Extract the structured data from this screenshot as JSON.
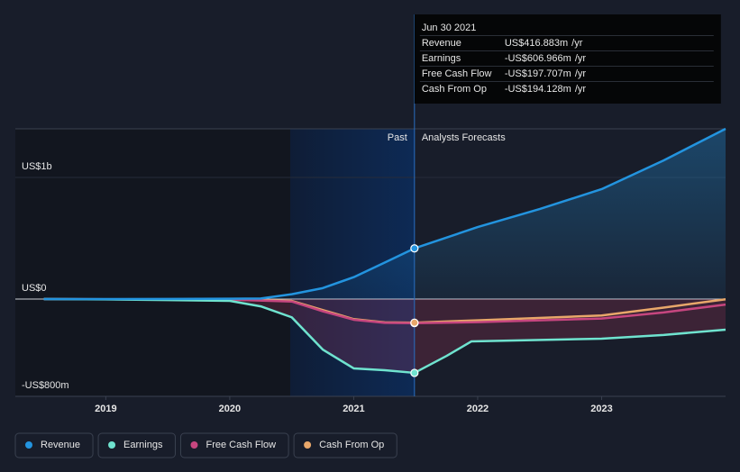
{
  "chart_data": {
    "type": "line",
    "xlim": [
      2018.27,
      2024.0
    ],
    "xticks": [
      2019,
      2020,
      2021,
      2022,
      2023
    ],
    "ylim": [
      -800,
      1400
    ],
    "yticks": [
      {
        "value": -800,
        "label": "-US$800m"
      },
      {
        "value": 0,
        "label": "US$0"
      },
      {
        "value": 1000,
        "label": "US$1b"
      }
    ],
    "grid": true,
    "annotations": {
      "past": "Past",
      "forecast": "Analysts Forecasts"
    },
    "series": [
      {
        "name": "Revenue",
        "color": "#2394df",
        "x": [
          2018.5,
          2019,
          2019.5,
          2020,
          2020.25,
          2020.5,
          2020.75,
          2021,
          2021.25,
          2021.49,
          2022,
          2022.5,
          2023,
          2023.5,
          2024
        ],
        "values": [
          0,
          0,
          1,
          3,
          5,
          40,
          90,
          180,
          300,
          416.883,
          592,
          740,
          904,
          1140,
          1400
        ]
      },
      {
        "name": "Earnings",
        "color": "#6fe3cf",
        "x": [
          2018.5,
          2019,
          2019.5,
          2020,
          2020.25,
          2020.5,
          2020.75,
          2021,
          2021.25,
          2021.49,
          2021.75,
          2021.95,
          2023,
          2023.5,
          2024
        ],
        "values": [
          0,
          -3,
          -8,
          -15,
          -60,
          -150,
          -415,
          -570,
          -585,
          -606.966,
          -467,
          -348,
          -326,
          -295,
          -252
        ]
      },
      {
        "name": "Free Cash Flow",
        "color": "#c6467f",
        "x": [
          2018.5,
          2019,
          2019.5,
          2020,
          2020.5,
          2020.75,
          2021,
          2021.25,
          2021.49,
          2022,
          2023,
          2023.5,
          2024
        ],
        "values": [
          0,
          -2,
          -4,
          -5,
          -20,
          -100,
          -170,
          -195,
          -197.707,
          -190,
          -160,
          -110,
          -45
        ]
      },
      {
        "name": "Cash From Op",
        "color": "#e8a76a",
        "x": [
          2018.5,
          2019,
          2019.5,
          2020,
          2020.5,
          2020.75,
          2021,
          2021.25,
          2021.49,
          2022,
          2023,
          2023.5,
          2024
        ],
        "values": [
          0,
          -2,
          -3,
          -4,
          -15,
          -90,
          -165,
          -192,
          -194.128,
          -175,
          -135,
          -70,
          -2
        ]
      }
    ],
    "tooltip": {
      "date": "Jun 30 2021",
      "x": 2021.49,
      "unit": "/yr",
      "rows": [
        {
          "name": "Revenue",
          "value": 416.883,
          "label": "US$416.883m"
        },
        {
          "name": "Earnings",
          "value": -606.966,
          "label": "-US$606.966m"
        },
        {
          "name": "Free Cash Flow",
          "value": -197.707,
          "label": "-US$197.707m"
        },
        {
          "name": "Cash From Op",
          "value": -194.128,
          "label": "-US$194.128m"
        }
      ]
    }
  }
}
